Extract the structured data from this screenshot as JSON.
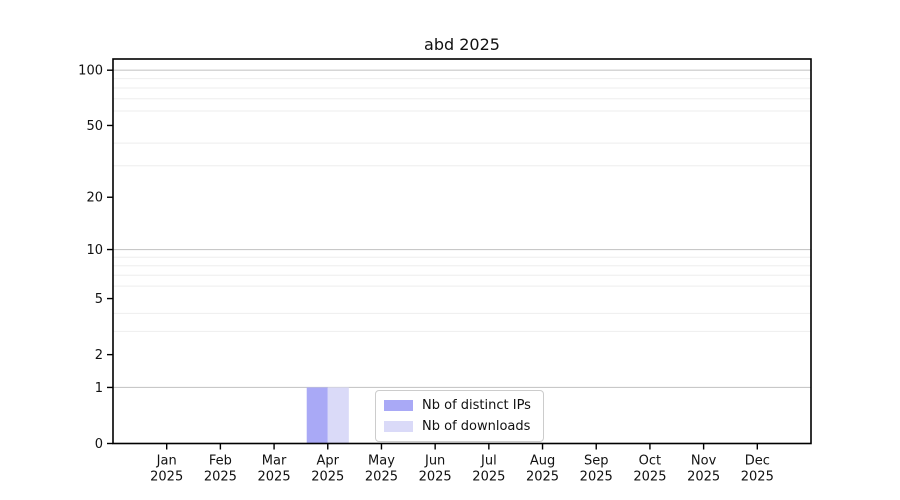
{
  "title": "abd 2025",
  "chart_data": {
    "type": "bar",
    "title": "abd 2025",
    "categories": [
      "Jan",
      "Feb",
      "Mar",
      "Apr",
      "May",
      "Jun",
      "Jul",
      "Aug",
      "Sep",
      "Oct",
      "Nov",
      "Dec"
    ],
    "category_year": "2025",
    "series": [
      {
        "name": "Nb of distinct IPs",
        "color": "#a9a9f6",
        "values": [
          0,
          0,
          0,
          1,
          0,
          0,
          0,
          0,
          0,
          0,
          0,
          0
        ]
      },
      {
        "name": "Nb of downloads",
        "color": "#dadaf8",
        "values": [
          0,
          0,
          0,
          1,
          0,
          0,
          0,
          0,
          0,
          0,
          0,
          0
        ]
      }
    ],
    "yscale": "log10(1+v)",
    "ylim": [
      0,
      115
    ],
    "y_ticks": [
      0,
      1,
      2,
      5,
      10,
      20,
      50,
      100
    ],
    "y_minor_gridlines": [
      3,
      4,
      6,
      7,
      8,
      9,
      30,
      40,
      60,
      70,
      80,
      90
    ],
    "y_major_gridlines": [
      1,
      10,
      100
    ],
    "grid": true,
    "legend_position": "lower center",
    "xlabel": "",
    "ylabel": ""
  },
  "colors": {
    "background": "#ffffff",
    "spine": "#000000",
    "major_grid": "#c8c8c8",
    "minor_grid": "#eeeeee",
    "tick_text": "#111111",
    "legend_border": "#cccccc"
  }
}
